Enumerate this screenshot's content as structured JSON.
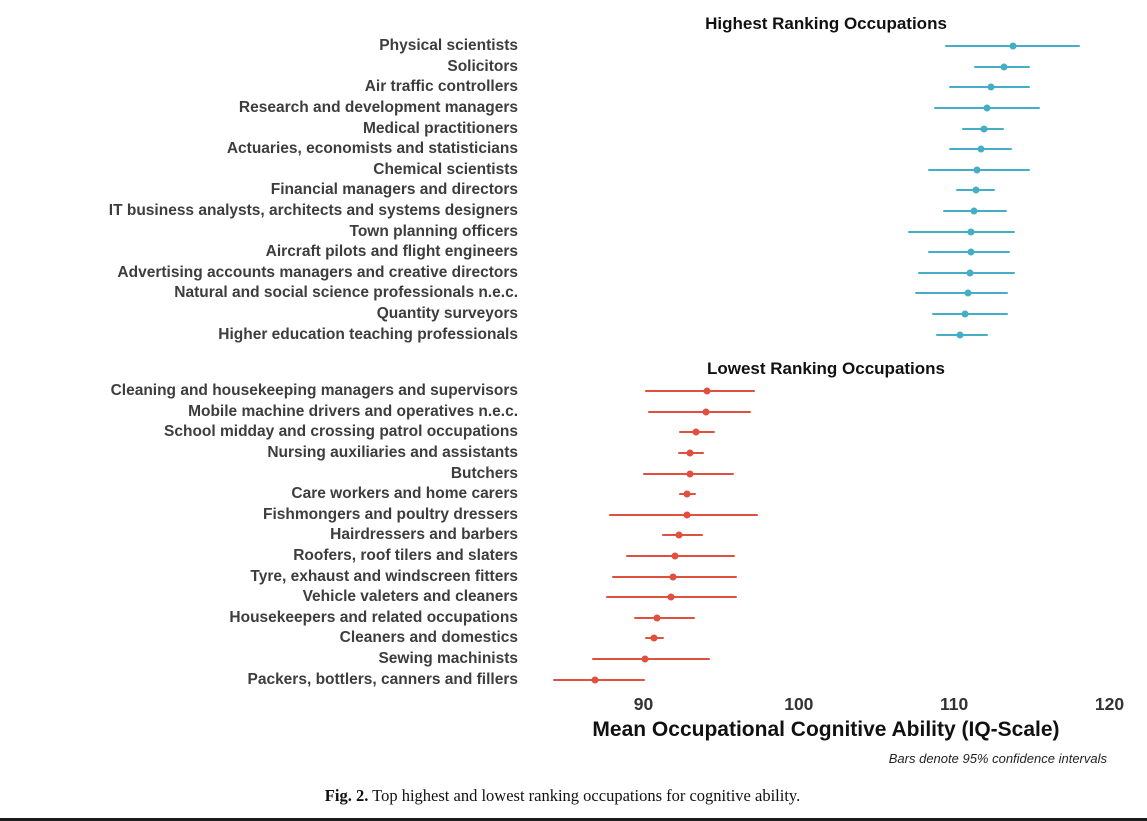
{
  "chart_data": {
    "type": "scatter",
    "subtype": "dot-plot-with-confidence-intervals",
    "xlabel": "Mean Occupational Cognitive Ability (IQ-Scale)",
    "footnote": "Bars denote 95% confidence intervals",
    "grid": false,
    "axis": {
      "min": 82.5,
      "max": 121,
      "ticks": [
        90,
        100,
        110,
        120
      ]
    },
    "panels": [
      {
        "title": "Highest Ranking Occupations",
        "color": "#45AEC6",
        "items": [
          {
            "label": "Physical scientists",
            "mean": 113.8,
            "ci": [
              109.4,
              118.1
            ]
          },
          {
            "label": "Solicitors",
            "mean": 113.2,
            "ci": [
              111.3,
              114.9
            ]
          },
          {
            "label": "Air traffic controllers",
            "mean": 112.4,
            "ci": [
              109.7,
              114.9
            ]
          },
          {
            "label": "Research and development managers",
            "mean": 112.1,
            "ci": [
              108.7,
              115.5
            ]
          },
          {
            "label": "Medical practitioners",
            "mean": 111.9,
            "ci": [
              110.5,
              113.2
            ]
          },
          {
            "label": "Actuaries, economists and statisticians",
            "mean": 111.7,
            "ci": [
              109.7,
              113.7
            ]
          },
          {
            "label": "Chemical scientists",
            "mean": 111.5,
            "ci": [
              108.3,
              114.9
            ]
          },
          {
            "label": "Financial managers and directors",
            "mean": 111.4,
            "ci": [
              110.1,
              112.6
            ]
          },
          {
            "label": "IT business analysts, architects and systems designers",
            "mean": 111.3,
            "ci": [
              109.3,
              113.4
            ]
          },
          {
            "label": "Town planning officers",
            "mean": 111.1,
            "ci": [
              107.0,
              113.9
            ]
          },
          {
            "label": "Aircraft pilots and flight engineers",
            "mean": 111.1,
            "ci": [
              108.3,
              113.6
            ]
          },
          {
            "label": "Advertising accounts managers and creative directors",
            "mean": 111.0,
            "ci": [
              107.7,
              113.9
            ]
          },
          {
            "label": "Natural and social science professionals n.e.c.",
            "mean": 110.9,
            "ci": [
              107.5,
              113.5
            ]
          },
          {
            "label": "Quantity surveyors",
            "mean": 110.7,
            "ci": [
              108.6,
              113.5
            ]
          },
          {
            "label": "Higher education teaching professionals",
            "mean": 110.4,
            "ci": [
              108.8,
              112.2
            ]
          }
        ]
      },
      {
        "title": "Lowest Ranking Occupations",
        "color": "#E0503E",
        "items": [
          {
            "label": "Cleaning and housekeeping managers and supervisors",
            "mean": 94.1,
            "ci": [
              90.1,
              97.2
            ]
          },
          {
            "label": "Mobile machine drivers and operatives n.e.c.",
            "mean": 94.0,
            "ci": [
              90.3,
              96.9
            ]
          },
          {
            "label": "School midday and crossing patrol occupations",
            "mean": 93.4,
            "ci": [
              92.3,
              94.6
            ]
          },
          {
            "label": "Nursing auxiliaries and assistants",
            "mean": 93.0,
            "ci": [
              92.2,
              93.9
            ]
          },
          {
            "label": "Butchers",
            "mean": 93.0,
            "ci": [
              90.0,
              95.8
            ]
          },
          {
            "label": "Care workers and home carers",
            "mean": 92.8,
            "ci": [
              92.3,
              93.4
            ]
          },
          {
            "label": "Fishmongers and poultry dressers",
            "mean": 92.8,
            "ci": [
              87.8,
              97.4
            ]
          },
          {
            "label": "Hairdressers and barbers",
            "mean": 92.3,
            "ci": [
              91.2,
              93.8
            ]
          },
          {
            "label": "Roofers, roof tilers and slaters",
            "mean": 92.0,
            "ci": [
              88.9,
              95.9
            ]
          },
          {
            "label": "Tyre, exhaust and windscreen fitters",
            "mean": 91.9,
            "ci": [
              88.0,
              96.0
            ]
          },
          {
            "label": "Vehicle valeters and cleaners",
            "mean": 91.8,
            "ci": [
              87.6,
              96.0
            ]
          },
          {
            "label": "Housekeepers and related occupations",
            "mean": 90.9,
            "ci": [
              89.4,
              93.3
            ]
          },
          {
            "label": "Cleaners and domestics",
            "mean": 90.7,
            "ci": [
              90.1,
              91.3
            ]
          },
          {
            "label": "Sewing machinists",
            "mean": 90.1,
            "ci": [
              86.7,
              94.3
            ]
          },
          {
            "label": "Packers, bottlers, canners and fillers",
            "mean": 86.9,
            "ci": [
              84.2,
              90.1
            ]
          }
        ]
      }
    ]
  },
  "caption": {
    "label": "Fig. 2.",
    "text": "Top highest and lowest ranking occupations for cognitive ability."
  }
}
